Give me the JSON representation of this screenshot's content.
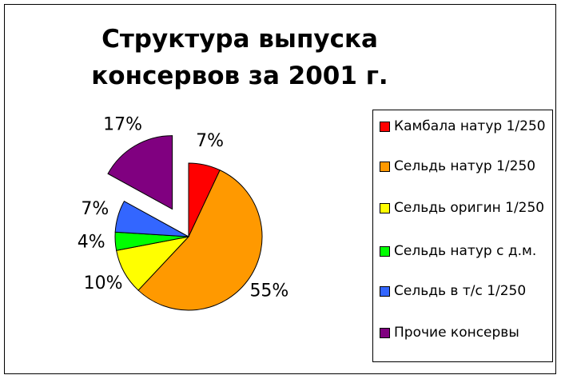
{
  "chart_data": {
    "type": "pie",
    "title": "Структура выпуска консервов за 2001 г.",
    "categories": [
      "Камбала натур 1/250",
      "Сельдь натур 1/250",
      "Сельдь оригин 1/250",
      "Сельдь натур с д.м.",
      "Сельдь в т/с 1/250",
      "Прочие консервы"
    ],
    "values": [
      7,
      55,
      10,
      4,
      7,
      17
    ],
    "value_labels": [
      "7%",
      "55%",
      "10%",
      "4%",
      "7%",
      "17%"
    ],
    "colors": [
      "#ff0000",
      "#ff9900",
      "#ffff00",
      "#00ff00",
      "#3366ff",
      "#800080"
    ],
    "explode": [
      false,
      false,
      false,
      false,
      false,
      true
    ],
    "legend": "right"
  }
}
